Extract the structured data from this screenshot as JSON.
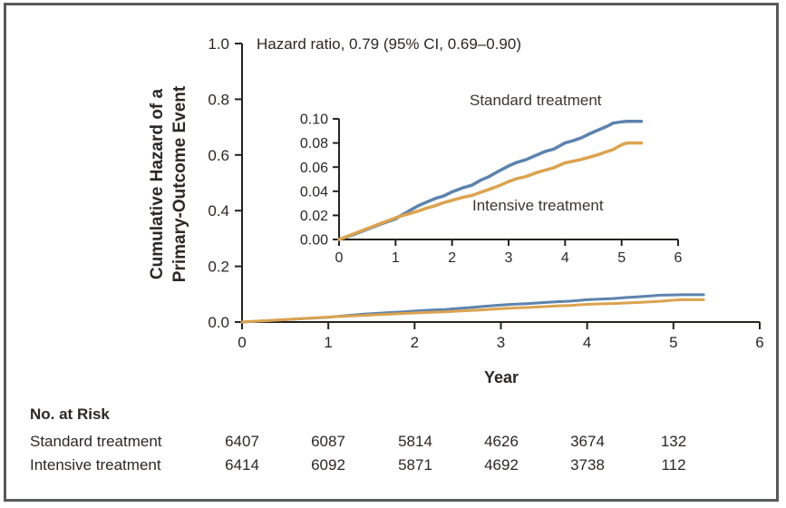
{
  "figure": {
    "annotation": "Hazard ratio, 0.79 (95% CI, 0.69–0.90)",
    "ylabel_line1": "Cumulative Hazard of a",
    "ylabel_line2": "Primary-Outcome Event",
    "xlabel": "Year"
  },
  "colors": {
    "axis": "#262220",
    "text": "#2b2826",
    "frame": "#58595b",
    "standard": "#5d83ad",
    "intensive": "#dba350"
  },
  "chart_data": {
    "type": "line",
    "title": "",
    "xlabel": "Year",
    "ylabel": "Cumulative Hazard of a Primary-Outcome Event",
    "annotation": "Hazard ratio, 0.79 (95% CI, 0.69–0.90)",
    "legend_position": "inline-labels",
    "grid": false,
    "series": [
      {
        "id": "standard",
        "name": "Standard treatment",
        "color": "#5d83ad",
        "points": [
          [
            0,
            0
          ],
          [
            0.25,
            0.004
          ],
          [
            0.5,
            0.0085
          ],
          [
            0.75,
            0.013
          ],
          [
            1,
            0.017
          ],
          [
            1.1,
            0.02
          ],
          [
            1.25,
            0.024
          ],
          [
            1.4,
            0.028
          ],
          [
            1.55,
            0.031
          ],
          [
            1.7,
            0.034
          ],
          [
            1.85,
            0.036
          ],
          [
            2,
            0.0395
          ],
          [
            2.2,
            0.043
          ],
          [
            2.35,
            0.045
          ],
          [
            2.5,
            0.049
          ],
          [
            2.65,
            0.052
          ],
          [
            2.8,
            0.056
          ],
          [
            3,
            0.061
          ],
          [
            3.15,
            0.064
          ],
          [
            3.3,
            0.066
          ],
          [
            3.5,
            0.07
          ],
          [
            3.65,
            0.073
          ],
          [
            3.8,
            0.075
          ],
          [
            4,
            0.08
          ],
          [
            4.15,
            0.082
          ],
          [
            4.3,
            0.0845
          ],
          [
            4.45,
            0.088
          ],
          [
            4.6,
            0.091
          ],
          [
            4.75,
            0.094
          ],
          [
            4.85,
            0.0965
          ],
          [
            5,
            0.0975
          ],
          [
            5.1,
            0.098
          ],
          [
            5.35,
            0.098
          ]
        ]
      },
      {
        "id": "intensive",
        "name": "Intensive treatment",
        "color": "#dba350",
        "points": [
          [
            0,
            0
          ],
          [
            0.25,
            0.0045
          ],
          [
            0.5,
            0.009
          ],
          [
            0.75,
            0.0135
          ],
          [
            1,
            0.018
          ],
          [
            1.1,
            0.0195
          ],
          [
            1.25,
            0.0215
          ],
          [
            1.4,
            0.0235
          ],
          [
            1.55,
            0.026
          ],
          [
            1.7,
            0.028
          ],
          [
            1.85,
            0.0305
          ],
          [
            2,
            0.0325
          ],
          [
            2.2,
            0.035
          ],
          [
            2.35,
            0.0365
          ],
          [
            2.5,
            0.039
          ],
          [
            2.65,
            0.0415
          ],
          [
            2.8,
            0.044
          ],
          [
            3,
            0.048
          ],
          [
            3.15,
            0.0505
          ],
          [
            3.3,
            0.052
          ],
          [
            3.5,
            0.0555
          ],
          [
            3.65,
            0.0575
          ],
          [
            3.8,
            0.0595
          ],
          [
            4,
            0.0635
          ],
          [
            4.15,
            0.065
          ],
          [
            4.3,
            0.0665
          ],
          [
            4.45,
            0.0685
          ],
          [
            4.6,
            0.0705
          ],
          [
            4.75,
            0.073
          ],
          [
            4.85,
            0.0745
          ],
          [
            5,
            0.0785
          ],
          [
            5.1,
            0.08
          ],
          [
            5.35,
            0.08
          ]
        ]
      }
    ],
    "views": [
      {
        "id": "main",
        "xlim": [
          0,
          6
        ],
        "ylim": [
          0,
          1.0
        ],
        "xticks": [
          "0",
          "1",
          "2",
          "3",
          "4",
          "5",
          "6"
        ],
        "yticks": [
          "0.0",
          "0.2",
          "0.4",
          "0.6",
          "0.8",
          "1.0"
        ]
      },
      {
        "id": "inset",
        "xlim": [
          0,
          6
        ],
        "ylim": [
          0,
          0.1
        ],
        "xticks": [
          "0",
          "1",
          "2",
          "3",
          "4",
          "5",
          "6"
        ],
        "yticks": [
          "0.00",
          "0.02",
          "0.04",
          "0.06",
          "0.08",
          "0.10"
        ]
      }
    ]
  },
  "risk_table": {
    "title": "No. at Risk",
    "rows": [
      {
        "label": "Standard treatment",
        "values": [
          "6407",
          "6087",
          "5814",
          "4626",
          "3674",
          "132"
        ]
      },
      {
        "label": "Intensive treatment",
        "values": [
          "6414",
          "6092",
          "5871",
          "4692",
          "3738",
          "112"
        ]
      }
    ]
  }
}
